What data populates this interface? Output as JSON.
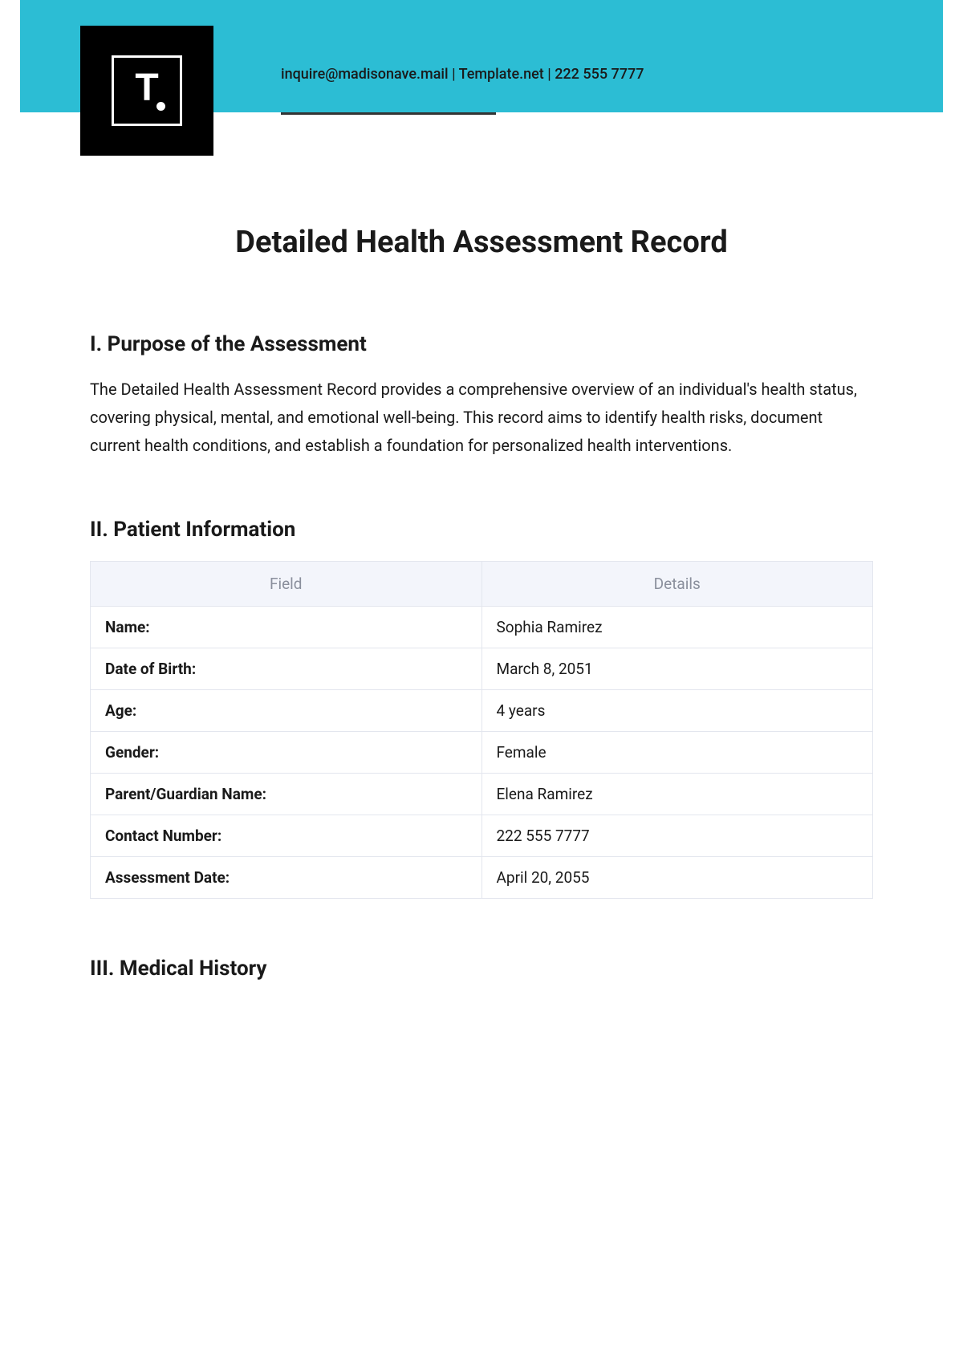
{
  "colors": {
    "banner": "#2cbdd4",
    "logo_bg": "#000000",
    "logo_fg": "#ffffff",
    "text": "#1a1a1a",
    "underline": "#333333",
    "table_header_bg": "#f3f5fb",
    "table_header_text": "#8a8f9c",
    "table_border": "#e3e6ee"
  },
  "header": {
    "email": "inquire@madisonave.mail",
    "site": "Template.net",
    "phone": "222 555 7777",
    "logo_letter": "T"
  },
  "doc": {
    "title": "Detailed Health Assessment Record"
  },
  "section1": {
    "heading": "I. Purpose of the Assessment",
    "body": "The Detailed Health Assessment Record provides a comprehensive overview of an individual's health status, covering physical, mental, and emotional well-being. This record aims to identify health risks, document current health conditions, and establish a foundation for personalized health interventions."
  },
  "section2": {
    "heading": "II. Patient Information",
    "columns": {
      "field": "Field",
      "details": "Details"
    },
    "rows": [
      {
        "field": "Name:",
        "value": "Sophia Ramirez"
      },
      {
        "field": "Date of Birth:",
        "value": "March 8, 2051"
      },
      {
        "field": "Age:",
        "value": "4 years"
      },
      {
        "field": "Gender:",
        "value": "Female"
      },
      {
        "field": "Parent/Guardian Name:",
        "value": "Elena Ramirez"
      },
      {
        "field": "Contact Number:",
        "value": "222 555 7777"
      },
      {
        "field": "Assessment Date:",
        "value": "April 20, 2055"
      }
    ]
  },
  "section3": {
    "heading": "III. Medical History"
  }
}
